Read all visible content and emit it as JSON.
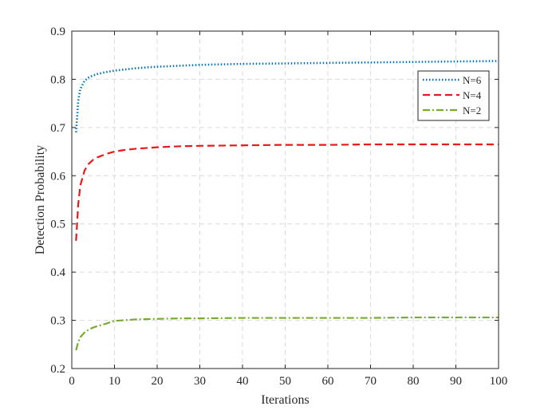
{
  "chart_data": {
    "type": "line",
    "title": "",
    "xlabel": "Iterations",
    "ylabel": "Detection Probability",
    "xlim": [
      0,
      100
    ],
    "ylim": [
      0.2,
      0.9
    ],
    "xticks": [
      0,
      10,
      20,
      30,
      40,
      50,
      60,
      70,
      80,
      90,
      100
    ],
    "yticks": [
      0.2,
      0.3,
      0.4,
      0.5,
      0.6,
      0.7,
      0.8,
      0.9
    ],
    "grid": true,
    "legend_position": "top-right",
    "series": [
      {
        "name": "N=6",
        "color": "#0072BD",
        "style": "dotted",
        "x": [
          1,
          1.5,
          2,
          3,
          4,
          5,
          6,
          8,
          10,
          12,
          15,
          18,
          20,
          25,
          30,
          40,
          50,
          60,
          70,
          80,
          90,
          100
        ],
        "y": [
          0.69,
          0.755,
          0.78,
          0.797,
          0.804,
          0.808,
          0.811,
          0.815,
          0.818,
          0.82,
          0.823,
          0.825,
          0.826,
          0.828,
          0.83,
          0.832,
          0.833,
          0.834,
          0.835,
          0.836,
          0.837,
          0.838
        ]
      },
      {
        "name": "N=4",
        "color": "#E8191B",
        "style": "dashed",
        "x": [
          1,
          1.5,
          2,
          3,
          4,
          5,
          6,
          8,
          10,
          12,
          15,
          20,
          25,
          30,
          40,
          50,
          60,
          70,
          80,
          90,
          100
        ],
        "y": [
          0.465,
          0.54,
          0.58,
          0.611,
          0.625,
          0.633,
          0.638,
          0.645,
          0.65,
          0.653,
          0.656,
          0.659,
          0.661,
          0.662,
          0.663,
          0.664,
          0.664,
          0.665,
          0.665,
          0.665,
          0.665
        ]
      },
      {
        "name": "N=2",
        "color": "#77AC30",
        "style": "dashdot",
        "x": [
          1,
          1.5,
          2,
          3,
          4,
          5,
          6,
          8,
          10,
          12,
          15,
          20,
          25,
          30,
          40,
          50,
          60,
          70,
          80,
          90,
          100
        ],
        "y": [
          0.238,
          0.255,
          0.265,
          0.275,
          0.281,
          0.285,
          0.288,
          0.293,
          0.299,
          0.3,
          0.302,
          0.303,
          0.304,
          0.304,
          0.305,
          0.305,
          0.305,
          0.305,
          0.306,
          0.306,
          0.306
        ]
      }
    ]
  }
}
